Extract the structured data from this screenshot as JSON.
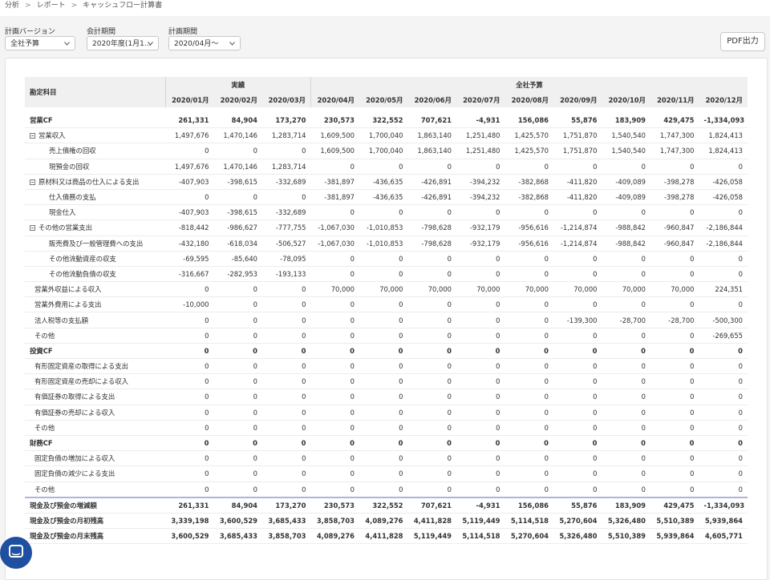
{
  "breadcrumb": [
    "分析",
    "レポート",
    "キャッシュフロー計算書"
  ],
  "filters": [
    {
      "label": "計画バージョン",
      "value": "全社予算"
    },
    {
      "label": "会計期間",
      "value": "2020年度(1月1..."
    },
    {
      "label": "計画期間",
      "value": "2020/04月～"
    }
  ],
  "pdf_button": "PDF出力",
  "table": {
    "header": "勘定科目",
    "groups": [
      {
        "label": "実績",
        "span": 3
      },
      {
        "label": "全社予算",
        "span": 9
      }
    ],
    "columns": [
      "2020/01月",
      "2020/02月",
      "2020/03月",
      "2020/04月",
      "2020/05月",
      "2020/06月",
      "2020/07月",
      "2020/08月",
      "2020/09月",
      "2020/10月",
      "2020/11月",
      "2020/12月"
    ],
    "rows": [
      {
        "label": "営業CF",
        "cells": [
          "261,331",
          "84,904",
          "173,270",
          "230,573",
          "322,552",
          "707,621",
          "-4,931",
          "156,086",
          "55,876",
          "183,909",
          "429,475",
          "-1,334,093"
        ]
      },
      {
        "label": "営業収入",
        "cells": [
          "1,497,676",
          "1,470,146",
          "1,283,714",
          "1,609,500",
          "1,700,040",
          "1,863,140",
          "1,251,480",
          "1,425,570",
          "1,751,870",
          "1,540,540",
          "1,747,300",
          "1,824,413"
        ]
      },
      {
        "label": "売上債権の回収",
        "cells": [
          "0",
          "0",
          "0",
          "1,609,500",
          "1,700,040",
          "1,863,140",
          "1,251,480",
          "1,425,570",
          "1,751,870",
          "1,540,540",
          "1,747,300",
          "1,824,413"
        ]
      },
      {
        "label": "現預金の回収",
        "cells": [
          "1,497,676",
          "1,470,146",
          "1,283,714",
          "0",
          "0",
          "0",
          "0",
          "0",
          "0",
          "0",
          "0",
          "0"
        ]
      },
      {
        "label": "原材料又は商品の仕入による支出",
        "cells": [
          "-407,903",
          "-398,615",
          "-332,689",
          "-381,897",
          "-436,635",
          "-426,891",
          "-394,232",
          "-382,868",
          "-411,820",
          "-409,089",
          "-398,278",
          "-426,058"
        ]
      },
      {
        "label": "仕入債務の支払",
        "cells": [
          "0",
          "0",
          "0",
          "-381,897",
          "-436,635",
          "-426,891",
          "-394,232",
          "-382,868",
          "-411,820",
          "-409,089",
          "-398,278",
          "-426,058"
        ]
      },
      {
        "label": "現金仕入",
        "cells": [
          "-407,903",
          "-398,615",
          "-332,689",
          "0",
          "0",
          "0",
          "0",
          "0",
          "0",
          "0",
          "0",
          "0"
        ]
      },
      {
        "label": "その他の営業支出",
        "cells": [
          "-818,442",
          "-986,627",
          "-777,755",
          "-1,067,030",
          "-1,010,853",
          "-798,628",
          "-932,179",
          "-956,616",
          "-1,214,874",
          "-988,842",
          "-960,847",
          "-2,186,844"
        ]
      },
      {
        "label": "販売費及び一般管理費への支出",
        "cells": [
          "-432,180",
          "-618,034",
          "-506,527",
          "-1,067,030",
          "-1,010,853",
          "-798,628",
          "-932,179",
          "-956,616",
          "-1,214,874",
          "-988,842",
          "-960,847",
          "-2,186,844"
        ]
      },
      {
        "label": "その他流動資産の収支",
        "cells": [
          "-69,595",
          "-85,640",
          "-78,095",
          "0",
          "0",
          "0",
          "0",
          "0",
          "0",
          "0",
          "0",
          "0"
        ]
      },
      {
        "label": "その他流動負債の収支",
        "cells": [
          "-316,667",
          "-282,953",
          "-193,133",
          "0",
          "0",
          "0",
          "0",
          "0",
          "0",
          "0",
          "0",
          "0"
        ]
      },
      {
        "label": "営業外収益による収入",
        "cells": [
          "0",
          "0",
          "0",
          "70,000",
          "70,000",
          "70,000",
          "70,000",
          "70,000",
          "70,000",
          "70,000",
          "70,000",
          "224,351"
        ]
      },
      {
        "label": "営業外費用による支出",
        "cells": [
          "-10,000",
          "0",
          "0",
          "0",
          "0",
          "0",
          "0",
          "0",
          "0",
          "0",
          "0",
          "0"
        ]
      },
      {
        "label": "法人税等の支払額",
        "cells": [
          "0",
          "0",
          "0",
          "0",
          "0",
          "0",
          "0",
          "0",
          "-139,300",
          "-28,700",
          "-28,700",
          "-500,300"
        ]
      },
      {
        "label": "その他",
        "cells": [
          "0",
          "0",
          "0",
          "0",
          "0",
          "0",
          "0",
          "0",
          "0",
          "0",
          "0",
          "-269,655"
        ]
      },
      {
        "label": "投資CF",
        "cells": [
          "0",
          "0",
          "0",
          "0",
          "0",
          "0",
          "0",
          "0",
          "0",
          "0",
          "0",
          "0"
        ]
      },
      {
        "label": "有形固定資産の取得による支出",
        "cells": [
          "0",
          "0",
          "0",
          "0",
          "0",
          "0",
          "0",
          "0",
          "0",
          "0",
          "0",
          "0"
        ]
      },
      {
        "label": "有形固定資産の売却による収入",
        "cells": [
          "0",
          "0",
          "0",
          "0",
          "0",
          "0",
          "0",
          "0",
          "0",
          "0",
          "0",
          "0"
        ]
      },
      {
        "label": "有価証券の取得による支出",
        "cells": [
          "0",
          "0",
          "0",
          "0",
          "0",
          "0",
          "0",
          "0",
          "0",
          "0",
          "0",
          "0"
        ]
      },
      {
        "label": "有価証券の売却による収入",
        "cells": [
          "0",
          "0",
          "0",
          "0",
          "0",
          "0",
          "0",
          "0",
          "0",
          "0",
          "0",
          "0"
        ]
      },
      {
        "label": "その他",
        "cells": [
          "0",
          "0",
          "0",
          "0",
          "0",
          "0",
          "0",
          "0",
          "0",
          "0",
          "0",
          "0"
        ]
      },
      {
        "label": "財務CF",
        "cells": [
          "0",
          "0",
          "0",
          "0",
          "0",
          "0",
          "0",
          "0",
          "0",
          "0",
          "0",
          "0"
        ]
      },
      {
        "label": "固定負債の増加による収入",
        "cells": [
          "0",
          "0",
          "0",
          "0",
          "0",
          "0",
          "0",
          "0",
          "0",
          "0",
          "0",
          "0"
        ]
      },
      {
        "label": "固定負債の減少による支出",
        "cells": [
          "0",
          "0",
          "0",
          "0",
          "0",
          "0",
          "0",
          "0",
          "0",
          "0",
          "0",
          "0"
        ]
      },
      {
        "label": "その他",
        "cells": [
          "0",
          "0",
          "0",
          "0",
          "0",
          "0",
          "0",
          "0",
          "0",
          "0",
          "0",
          "0"
        ]
      },
      {
        "label": "現金及び預金の増減額",
        "cells": [
          "261,331",
          "84,904",
          "173,270",
          "230,573",
          "322,552",
          "707,621",
          "-4,931",
          "156,086",
          "55,876",
          "183,909",
          "429,475",
          "-1,334,093"
        ]
      },
      {
        "label": "現金及び預金の月初残高",
        "cells": [
          "3,339,198",
          "3,600,529",
          "3,685,433",
          "3,858,703",
          "4,089,276",
          "4,411,828",
          "5,119,449",
          "5,114,518",
          "5,270,604",
          "5,326,480",
          "5,510,389",
          "5,939,864"
        ]
      },
      {
        "label": "現金及び預金の月末残高",
        "cells": [
          "3,600,529",
          "3,685,433",
          "3,858,703",
          "4,089,276",
          "4,411,828",
          "5,119,449",
          "5,114,518",
          "5,270,604",
          "5,326,480",
          "5,510,389",
          "5,939,864",
          "4,605,771"
        ]
      }
    ]
  }
}
